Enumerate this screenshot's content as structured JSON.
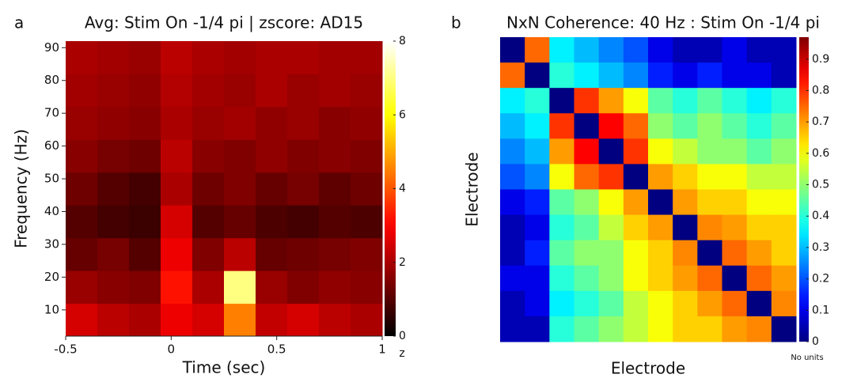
{
  "chart_data": [
    {
      "type": "heatmap",
      "panel_label": "a",
      "title": "Avg: Stim On -1/4 pi | zscore: AD15",
      "xlabel": "Time (sec)",
      "ylabel": "Frequency (Hz)",
      "colormap": "hot",
      "x": [
        -0.425,
        -0.275,
        -0.125,
        0.025,
        0.175,
        0.325,
        0.475,
        0.625,
        0.775,
        0.925
      ],
      "y": [
        7,
        17,
        27,
        37,
        47,
        57,
        67,
        77,
        87
      ],
      "z": [
        [
          2.5,
          2.2,
          2.0,
          2.8,
          2.5,
          4.5,
          2.3,
          2.5,
          2.2,
          2.0
        ],
        [
          1.8,
          1.6,
          1.5,
          3.2,
          2.0,
          7.0,
          1.8,
          1.5,
          1.7,
          1.6
        ],
        [
          1.2,
          1.4,
          1.0,
          2.8,
          1.5,
          2.2,
          1.2,
          1.3,
          1.4,
          1.5
        ],
        [
          1.0,
          0.8,
          0.7,
          2.5,
          1.0,
          1.2,
          0.9,
          0.8,
          1.0,
          0.9
        ],
        [
          1.3,
          1.0,
          0.8,
          2.0,
          1.3,
          1.5,
          1.2,
          1.4,
          1.1,
          1.3
        ],
        [
          1.6,
          1.4,
          1.3,
          2.2,
          1.6,
          1.5,
          1.7,
          1.5,
          1.6,
          1.5
        ],
        [
          1.8,
          1.7,
          1.6,
          2.0,
          1.8,
          1.9,
          1.7,
          1.8,
          1.6,
          1.7
        ],
        [
          1.9,
          1.8,
          1.7,
          2.1,
          1.9,
          1.8,
          2.0,
          1.8,
          1.9,
          1.8
        ],
        [
          2.0,
          1.9,
          1.8,
          2.2,
          2.0,
          1.9,
          2.0,
          2.0,
          1.9,
          1.9
        ]
      ],
      "xlim": [
        -0.5,
        1
      ],
      "xticks": [
        -0.5,
        0,
        0.5,
        1
      ],
      "ylim": [
        2,
        92
      ],
      "yticks": [
        10,
        20,
        30,
        40,
        50,
        60,
        70,
        80,
        90
      ],
      "clim": [
        0,
        8
      ],
      "cticks": [
        0,
        2,
        4,
        6,
        8
      ],
      "clabel": "z"
    },
    {
      "type": "heatmap",
      "panel_label": "b",
      "title": "NxN Coherence: 40 Hz : Stim On -1/4 pi",
      "xlabel": "Electrode",
      "ylabel": "Electrode",
      "colormap": "jet",
      "z": [
        [
          0,
          0.75,
          0.35,
          0.3,
          0.25,
          0.2,
          0.1,
          0.05,
          0.05,
          0.1,
          0.05,
          0.05
        ],
        [
          0.75,
          0,
          0.4,
          0.35,
          0.3,
          0.25,
          0.15,
          0.1,
          0.15,
          0.1,
          0.1,
          0.05
        ],
        [
          0.35,
          0.4,
          0,
          0.8,
          0.7,
          0.6,
          0.45,
          0.4,
          0.45,
          0.4,
          0.35,
          0.4
        ],
        [
          0.3,
          0.35,
          0.8,
          0,
          0.85,
          0.75,
          0.5,
          0.45,
          0.5,
          0.45,
          0.4,
          0.45
        ],
        [
          0.25,
          0.3,
          0.7,
          0.85,
          0,
          0.8,
          0.6,
          0.55,
          0.5,
          0.5,
          0.45,
          0.5
        ],
        [
          0.2,
          0.25,
          0.6,
          0.75,
          0.8,
          0,
          0.7,
          0.65,
          0.6,
          0.6,
          0.55,
          0.55
        ],
        [
          0.1,
          0.15,
          0.45,
          0.5,
          0.6,
          0.7,
          0,
          0.7,
          0.65,
          0.65,
          0.6,
          0.6
        ],
        [
          0.05,
          0.1,
          0.4,
          0.45,
          0.55,
          0.65,
          0.7,
          0,
          0.72,
          0.7,
          0.65,
          0.65
        ],
        [
          0.05,
          0.15,
          0.45,
          0.5,
          0.5,
          0.6,
          0.65,
          0.72,
          0,
          0.75,
          0.7,
          0.65
        ],
        [
          0.1,
          0.1,
          0.4,
          0.45,
          0.5,
          0.6,
          0.65,
          0.7,
          0.75,
          0,
          0.75,
          0.7
        ],
        [
          0.05,
          0.1,
          0.35,
          0.4,
          0.45,
          0.55,
          0.6,
          0.65,
          0.7,
          0.75,
          0,
          0.72
        ],
        [
          0.05,
          0.05,
          0.4,
          0.45,
          0.5,
          0.55,
          0.6,
          0.65,
          0.65,
          0.7,
          0.72,
          0
        ]
      ],
      "clim": [
        0,
        0.97
      ],
      "cticks": [
        0,
        0.1,
        0.2,
        0.3,
        0.4,
        0.5,
        0.6,
        0.7,
        0.8,
        0.9
      ],
      "clabel": "No units"
    }
  ]
}
